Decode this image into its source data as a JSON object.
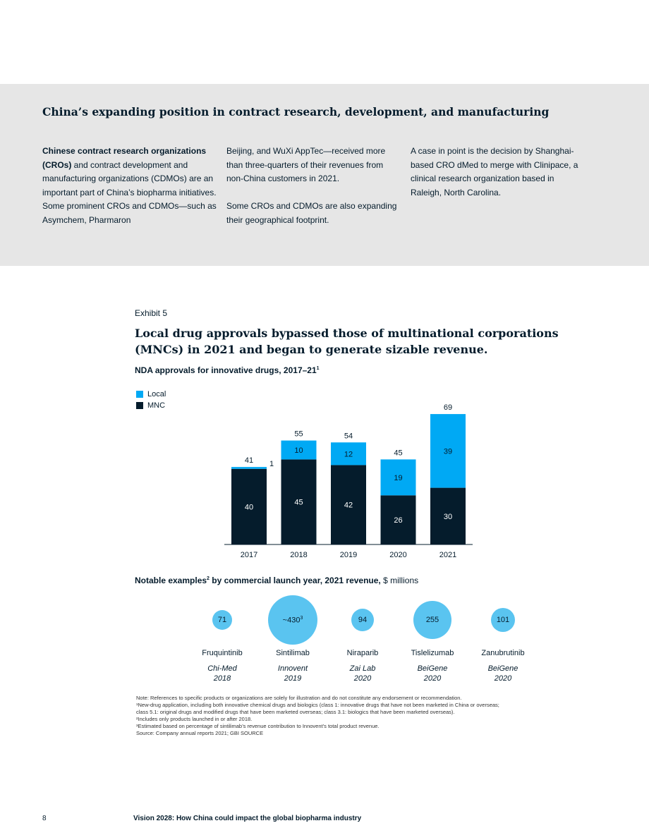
{
  "sidebar": {
    "title": "China’s expanding position in contract research, development, and manufacturing",
    "col1_bold": "Chinese contract research organizations (CROs)",
    "col1_text": " and contract development and manufacturing organizations (CDMOs) are an important part of China’s biopharma initiatives. Some prominent CROs and CDMOs—such as Asymchem, Pharmaron",
    "col2_p1": "Beijing, and WuXi AppTec—received more than three-quarters of their revenues from non-China customers in 2021.",
    "col2_p2": "Some CROs and CDMOs are also expanding their geographical footprint.",
    "col3_p1": "A case in point is the decision by Shanghai-based CRO dMed to merge with Clinipace, a clinical research organization based in Raleigh, North Carolina."
  },
  "exhibit": {
    "label": "Exhibit 5",
    "title": "Local drug approvals bypassed those of multinational corporations (MNCs) in 2021 and began to generate sizable revenue."
  },
  "chart_title": "NDA approvals for innovative drugs, 2017–21",
  "chart_title_sup": "1",
  "legend": {
    "local": "Local",
    "mnc": "MNC"
  },
  "colors": {
    "local": "#00a9f4",
    "mnc": "#051c2c",
    "bubble": "#5ac4f0"
  },
  "chart_data": {
    "type": "bar",
    "stacked": true,
    "categories": [
      "2017",
      "2018",
      "2019",
      "2020",
      "2021"
    ],
    "series": [
      {
        "name": "MNC",
        "values": [
          40,
          45,
          42,
          26,
          30
        ]
      },
      {
        "name": "Local",
        "values": [
          1,
          10,
          12,
          19,
          39
        ]
      }
    ],
    "totals": [
      41,
      55,
      54,
      45,
      69
    ],
    "legend_position": "top-left"
  },
  "examples": {
    "title_bold": "Notable examples",
    "title_sup": "2",
    "title_bold2": " by commercial launch year, 2021 revenue,",
    "title_normal": " $ millions",
    "items": [
      {
        "value": 71,
        "value_label": "71",
        "value_sup": "",
        "name": "Fruquintinib",
        "company": "Chi-Med",
        "year": "2018"
      },
      {
        "value": 430,
        "value_label": "~430",
        "value_sup": "3",
        "name": "Sintilimab",
        "company": "Innovent",
        "year": "2019"
      },
      {
        "value": 94,
        "value_label": "94",
        "value_sup": "",
        "name": "Niraparib",
        "company": "Zai Lab",
        "year": "2020"
      },
      {
        "value": 255,
        "value_label": "255",
        "value_sup": "",
        "name": "Tislelizumab",
        "company": "BeiGene",
        "year": "2020"
      },
      {
        "value": 101,
        "value_label": "101",
        "value_sup": "",
        "name": "Zanubrutinib",
        "company": "BeiGene",
        "year": "2020"
      }
    ]
  },
  "notes": [
    "Note: References to specific products or organizations are solely for illustration and do not constitute any endorsement or recommendation.",
    "¹New-drug application, including both innovative chemical drugs and biologics (class 1: innovative drugs that have not been marketed in China or overseas;",
    " class 5.1: original drugs and modified drugs that have been marketed overseas; class 3.1: biologics that have been marketed overseas).",
    "²Includes only products launched in or after 2018.",
    "³Estimated based on percentage of sintilimab’s revenue contribution to Innovent’s total product revenue.",
    " Source: Company annual reports 2021; GBI SOURCE"
  ],
  "footer": {
    "page_number": "8",
    "title": "Vision 2028: How China could impact the global biopharma industry"
  }
}
